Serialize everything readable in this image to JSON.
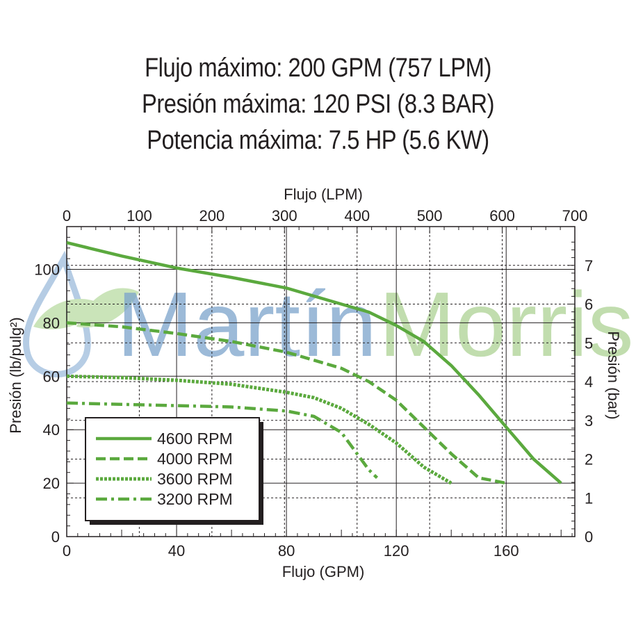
{
  "specs": [
    "Flujo máximo: 200 GPM (757 LPM)",
    "Presión máxima: 120 PSI (8.3 BAR)",
    "Potencia máxima: 7.5 HP (5.6 KW)"
  ],
  "watermark": {
    "part1": "Martín",
    "part2": "Morris",
    "color1": "#7ba3cc",
    "color2": "#a8d08d"
  },
  "chart_data": {
    "type": "line",
    "title": "",
    "xlabel": "Flujo (GPM)",
    "xlabel_top": "Flujo (LPM)",
    "ylabel": "Presión (lb/pulg²)",
    "ylabel_right": "Presión (bar)",
    "xlim": [
      0,
      185
    ],
    "ylim": [
      0,
      116
    ],
    "xlim_top": [
      0,
      700
    ],
    "ylim_right": [
      0,
      8
    ],
    "x_ticks": [
      "0",
      "40",
      "80",
      "120",
      "160"
    ],
    "x_tick_values": [
      0,
      40,
      80,
      120,
      160
    ],
    "x_top_ticks": [
      "0",
      "100",
      "200",
      "300",
      "400",
      "500",
      "600",
      "700"
    ],
    "x_top_tick_values": [
      0,
      100,
      200,
      300,
      400,
      500,
      600,
      700
    ],
    "y_ticks": [
      "0",
      "20",
      "40",
      "60",
      "80",
      "100"
    ],
    "y_tick_values": [
      0,
      20,
      40,
      60,
      80,
      100
    ],
    "y_right_ticks": [
      "0",
      "1",
      "2",
      "3",
      "4",
      "5",
      "6",
      "7"
    ],
    "y_right_tick_values": [
      0,
      1,
      2,
      3,
      4,
      5,
      6,
      7
    ],
    "grid": true,
    "legend_position": "bottom-left",
    "color": "#5ba93e",
    "series": [
      {
        "name": "4600 RPM",
        "style": "solid",
        "x": [
          0,
          20,
          40,
          60,
          80,
          100,
          110,
          120,
          130,
          140,
          150,
          160,
          170,
          180
        ],
        "y": [
          110,
          105,
          100.5,
          97,
          93,
          87,
          84,
          79,
          73,
          64,
          53,
          41,
          29,
          20
        ]
      },
      {
        "name": "4000 RPM",
        "style": "dashed",
        "x": [
          0,
          20,
          40,
          60,
          80,
          90,
          100,
          110,
          120,
          130,
          140,
          150,
          160
        ],
        "y": [
          80,
          78.5,
          76,
          73,
          69,
          66,
          63,
          58,
          51,
          41,
          31,
          22,
          20
        ]
      },
      {
        "name": "3600 RPM",
        "style": "dotted",
        "x": [
          0,
          20,
          40,
          60,
          80,
          90,
          100,
          110,
          120,
          130,
          140
        ],
        "y": [
          60,
          59.5,
          58.5,
          57,
          54,
          52,
          48,
          42,
          35,
          26,
          20
        ]
      },
      {
        "name": "3200 RPM",
        "style": "dashdot",
        "x": [
          0,
          20,
          40,
          60,
          80,
          90,
          100,
          105,
          110,
          113
        ],
        "y": [
          50,
          49.5,
          49,
          48.5,
          47,
          45,
          39,
          32,
          25,
          22
        ]
      }
    ]
  }
}
